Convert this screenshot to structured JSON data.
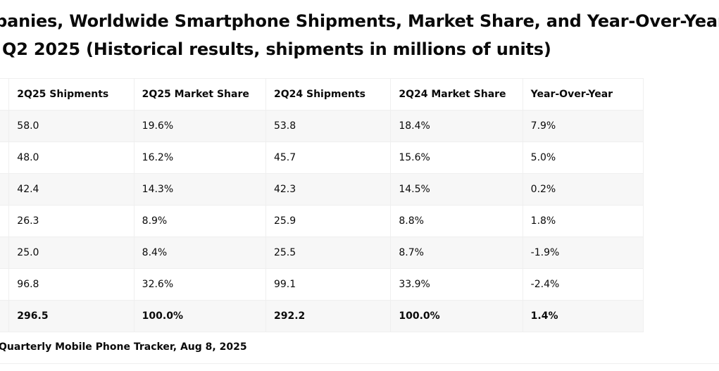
{
  "title": {
    "line1": "ompanies, Worldwide Smartphone Shipments, Market Share, and Year-Over-Year",
    "line2": "Q2 2025 (Historical results, shipments in millions of units)"
  },
  "table": {
    "headers": [
      "",
      "2Q25 Shipments",
      "2Q25 Market Share",
      "2Q24 Shipments",
      "2Q24 Market Share",
      "Year-Over-Year"
    ],
    "rows": [
      {
        "company": "",
        "q25_shipments": "58.0",
        "q25_share": "19.6%",
        "q24_shipments": "53.8",
        "q24_share": "18.4%",
        "yoy": "7.9%"
      },
      {
        "company": "",
        "q25_shipments": "48.0",
        "q25_share": "16.2%",
        "q24_shipments": "45.7",
        "q24_share": "15.6%",
        "yoy": "5.0%"
      },
      {
        "company": "",
        "q25_shipments": "42.4",
        "q25_share": "14.3%",
        "q24_shipments": "42.3",
        "q24_share": "14.5%",
        "yoy": "0.2%"
      },
      {
        "company": "",
        "q25_shipments": "26.3",
        "q25_share": "8.9%",
        "q24_shipments": "25.9",
        "q24_share": "8.8%",
        "yoy": "1.8%"
      },
      {
        "company": "",
        "q25_shipments": "25.0",
        "q25_share": "8.4%",
        "q24_shipments": "25.5",
        "q24_share": "8.7%",
        "yoy": "-1.9%"
      },
      {
        "company": "",
        "q25_shipments": "96.8",
        "q25_share": "32.6%",
        "q24_shipments": "99.1",
        "q24_share": "33.9%",
        "yoy": "-2.4%"
      }
    ],
    "total": {
      "company": "",
      "q25_shipments": "296.5",
      "q25_share": "100.0%",
      "q24_shipments": "292.2",
      "q24_share": "100.0%",
      "yoy": "1.4%"
    }
  },
  "source": "Quarterly Mobile Phone Tracker, Aug 8, 2025"
}
